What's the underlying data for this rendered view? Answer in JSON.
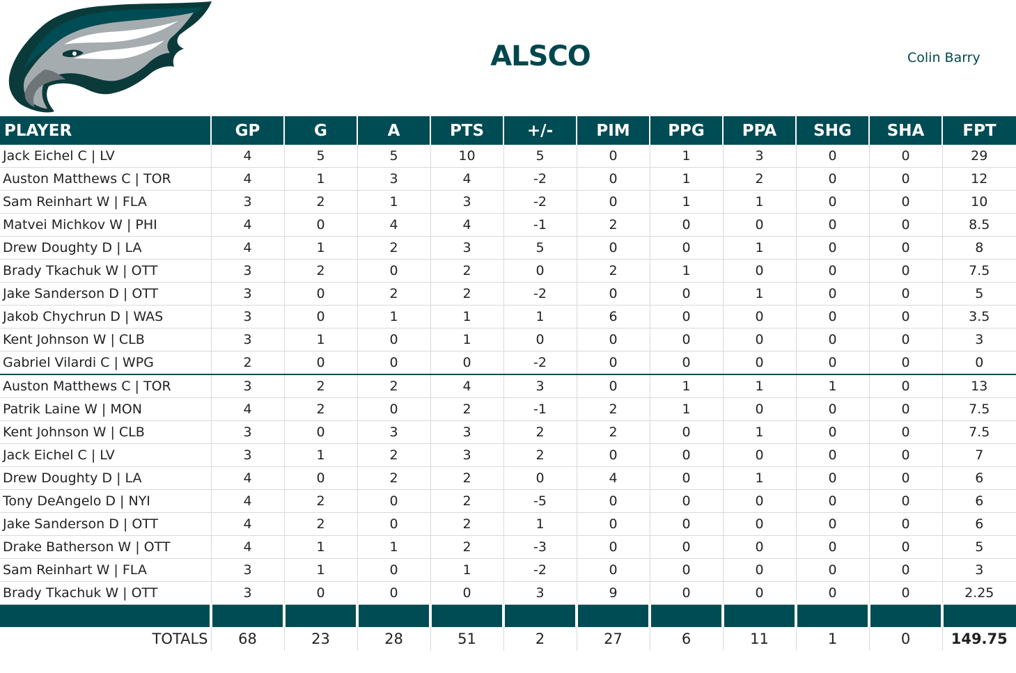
{
  "header": {
    "logo_name": "eagle-head-logo",
    "team": "ALSCO",
    "owner": "Colin Barry"
  },
  "colors": {
    "primary": "#004c54",
    "title": "#00474d"
  },
  "table": {
    "columns": [
      "PLAYER",
      "GP",
      "G",
      "A",
      "PTS",
      "+/-",
      "PIM",
      "PPG",
      "PPA",
      "SHG",
      "SHA",
      "FPT"
    ],
    "rows": [
      [
        "Jack Eichel C | LV",
        "4",
        "5",
        "5",
        "10",
        "5",
        "0",
        "1",
        "3",
        "0",
        "0",
        "29"
      ],
      [
        "Auston Matthews C | TOR",
        "4",
        "1",
        "3",
        "4",
        "-2",
        "0",
        "1",
        "2",
        "0",
        "0",
        "12"
      ],
      [
        "Sam Reinhart W | FLA",
        "3",
        "2",
        "1",
        "3",
        "-2",
        "0",
        "1",
        "1",
        "0",
        "0",
        "10"
      ],
      [
        "Matvei Michkov W | PHI",
        "4",
        "0",
        "4",
        "4",
        "-1",
        "2",
        "0",
        "0",
        "0",
        "0",
        "8.5"
      ],
      [
        "Drew Doughty D | LA",
        "4",
        "1",
        "2",
        "3",
        "5",
        "0",
        "0",
        "1",
        "0",
        "0",
        "8"
      ],
      [
        "Brady Tkachuk W | OTT",
        "3",
        "2",
        "0",
        "2",
        "0",
        "2",
        "1",
        "0",
        "0",
        "0",
        "7.5"
      ],
      [
        "Jake Sanderson D | OTT",
        "3",
        "0",
        "2",
        "2",
        "-2",
        "0",
        "0",
        "1",
        "0",
        "0",
        "5"
      ],
      [
        "Jakob Chychrun D | WAS",
        "3",
        "0",
        "1",
        "1",
        "1",
        "6",
        "0",
        "0",
        "0",
        "0",
        "3.5"
      ],
      [
        "Kent Johnson W | CLB",
        "3",
        "1",
        "0",
        "1",
        "0",
        "0",
        "0",
        "0",
        "0",
        "0",
        "3"
      ],
      [
        "Gabriel Vilardi C | WPG",
        "2",
        "0",
        "0",
        "0",
        "-2",
        "0",
        "0",
        "0",
        "0",
        "0",
        "0"
      ],
      [
        "Auston Matthews C | TOR",
        "3",
        "2",
        "2",
        "4",
        "3",
        "0",
        "1",
        "1",
        "1",
        "0",
        "13"
      ],
      [
        "Patrik Laine W | MON",
        "4",
        "2",
        "0",
        "2",
        "-1",
        "2",
        "1",
        "0",
        "0",
        "0",
        "7.5"
      ],
      [
        "Kent Johnson W | CLB",
        "3",
        "0",
        "3",
        "3",
        "2",
        "2",
        "0",
        "1",
        "0",
        "0",
        "7.5"
      ],
      [
        "Jack Eichel C | LV",
        "3",
        "1",
        "2",
        "3",
        "2",
        "0",
        "0",
        "0",
        "0",
        "0",
        "7"
      ],
      [
        "Drew Doughty D | LA",
        "4",
        "0",
        "2",
        "2",
        "0",
        "4",
        "0",
        "1",
        "0",
        "0",
        "6"
      ],
      [
        "Tony DeAngelo D | NYI",
        "4",
        "2",
        "0",
        "2",
        "-5",
        "0",
        "0",
        "0",
        "0",
        "0",
        "6"
      ],
      [
        "Jake Sanderson D | OTT",
        "4",
        "2",
        "0",
        "2",
        "1",
        "0",
        "0",
        "0",
        "0",
        "0",
        "6"
      ],
      [
        "Drake Batherson W | OTT",
        "4",
        "1",
        "1",
        "2",
        "-3",
        "0",
        "0",
        "0",
        "0",
        "0",
        "5"
      ],
      [
        "Sam Reinhart W | FLA",
        "3",
        "1",
        "0",
        "1",
        "-2",
        "0",
        "0",
        "0",
        "0",
        "0",
        "3"
      ],
      [
        "Brady Tkachuk W | OTT",
        "3",
        "0",
        "0",
        "0",
        "3",
        "9",
        "0",
        "0",
        "0",
        "0",
        "2.25"
      ]
    ],
    "totals": [
      "TOTALS",
      "68",
      "23",
      "28",
      "51",
      "2",
      "27",
      "6",
      "11",
      "1",
      "0",
      "149.75"
    ]
  }
}
